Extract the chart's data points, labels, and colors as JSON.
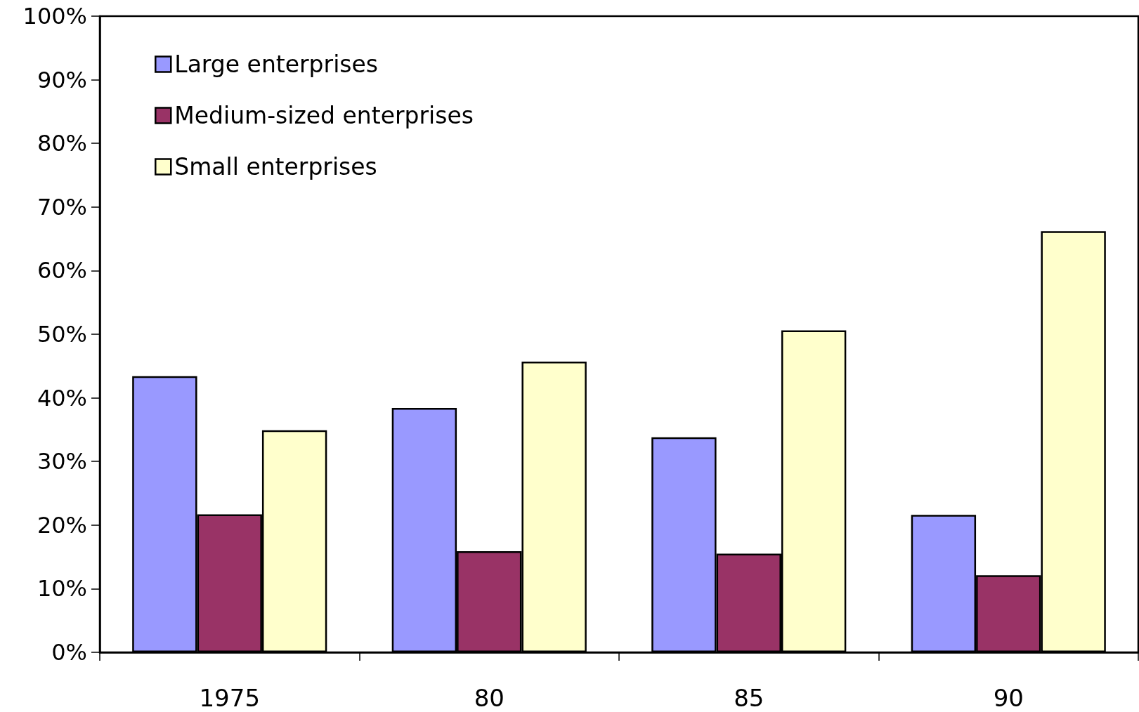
{
  "chart_data": {
    "type": "bar",
    "categories": [
      "1975",
      "80",
      "85",
      "90"
    ],
    "series": [
      {
        "name": "Large enterprises",
        "color": "#9999ff",
        "values": [
          43.4,
          38.4,
          33.8,
          21.6
        ]
      },
      {
        "name": "Medium-sized enterprises",
        "color": "#993366",
        "values": [
          21.7,
          15.9,
          15.5,
          12.1
        ]
      },
      {
        "name": "Small enterprises",
        "color": "#ffffcc",
        "values": [
          34.9,
          45.7,
          50.6,
          66.2
        ]
      }
    ],
    "ylim": [
      0,
      100
    ],
    "yticks": [
      {
        "value": 0,
        "label": "0%"
      },
      {
        "value": 10,
        "label": "10%"
      },
      {
        "value": 20,
        "label": "20%"
      },
      {
        "value": 30,
        "label": "30%"
      },
      {
        "value": 40,
        "label": "40%"
      },
      {
        "value": 50,
        "label": "50%"
      },
      {
        "value": 60,
        "label": "60%"
      },
      {
        "value": 70,
        "label": "70%"
      },
      {
        "value": 80,
        "label": "80%"
      },
      {
        "value": 90,
        "label": "90%"
      },
      {
        "value": 100,
        "label": "100%"
      }
    ],
    "grid": false,
    "legend": "top left"
  }
}
